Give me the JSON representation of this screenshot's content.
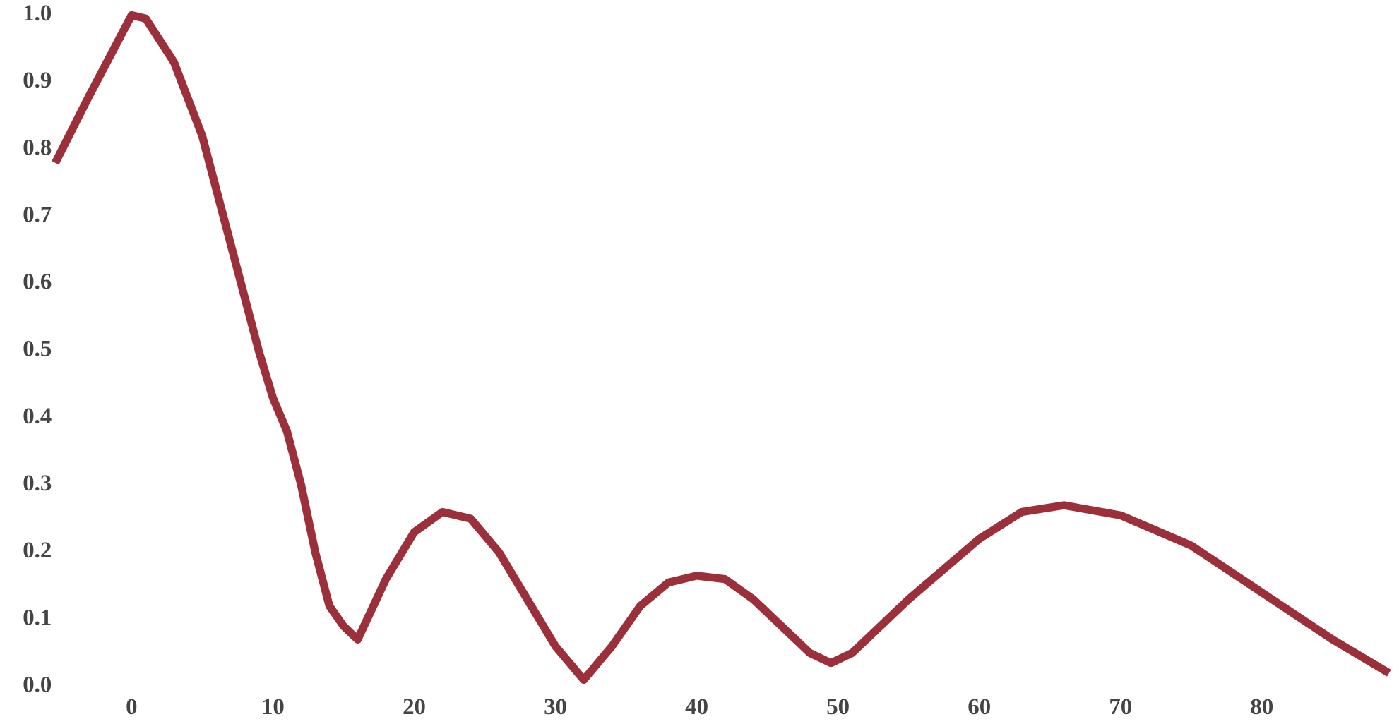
{
  "chart_data": {
    "type": "line",
    "x": [
      -5.4,
      -3,
      0,
      1,
      3,
      5,
      7,
      9,
      10,
      11,
      12,
      13,
      14,
      15,
      16,
      18,
      20,
      22,
      24,
      26,
      28,
      30,
      32,
      34,
      36,
      38,
      40,
      42,
      44,
      46,
      48,
      49.5,
      51,
      55,
      60,
      63,
      66,
      70,
      75,
      80,
      85,
      89
    ],
    "series": [
      {
        "color": "#9b2f3a",
        "values": [
          0.78,
          0.88,
          1.0,
          0.995,
          0.93,
          0.82,
          0.66,
          0.5,
          0.43,
          0.38,
          0.3,
          0.2,
          0.12,
          0.09,
          0.07,
          0.16,
          0.23,
          0.26,
          0.25,
          0.2,
          0.13,
          0.06,
          0.01,
          0.06,
          0.12,
          0.155,
          0.165,
          0.16,
          0.13,
          0.09,
          0.05,
          0.035,
          0.05,
          0.13,
          0.22,
          0.26,
          0.27,
          0.255,
          0.21,
          0.14,
          0.07,
          0.02
        ]
      }
    ],
    "xlim": [
      -5.4,
      89.2
    ],
    "ylim": [
      0,
      1
    ],
    "xticks": [
      0,
      10,
      20,
      30,
      40,
      50,
      60,
      70,
      80
    ],
    "yticks": [
      {
        "value": 0,
        "label": "0.0"
      },
      0.1,
      0.2,
      0.3,
      0.4,
      0.5,
      0.6,
      0.7,
      0.8,
      0.9,
      {
        "value": 1,
        "label": "1.0"
      }
    ],
    "grid": false
  }
}
